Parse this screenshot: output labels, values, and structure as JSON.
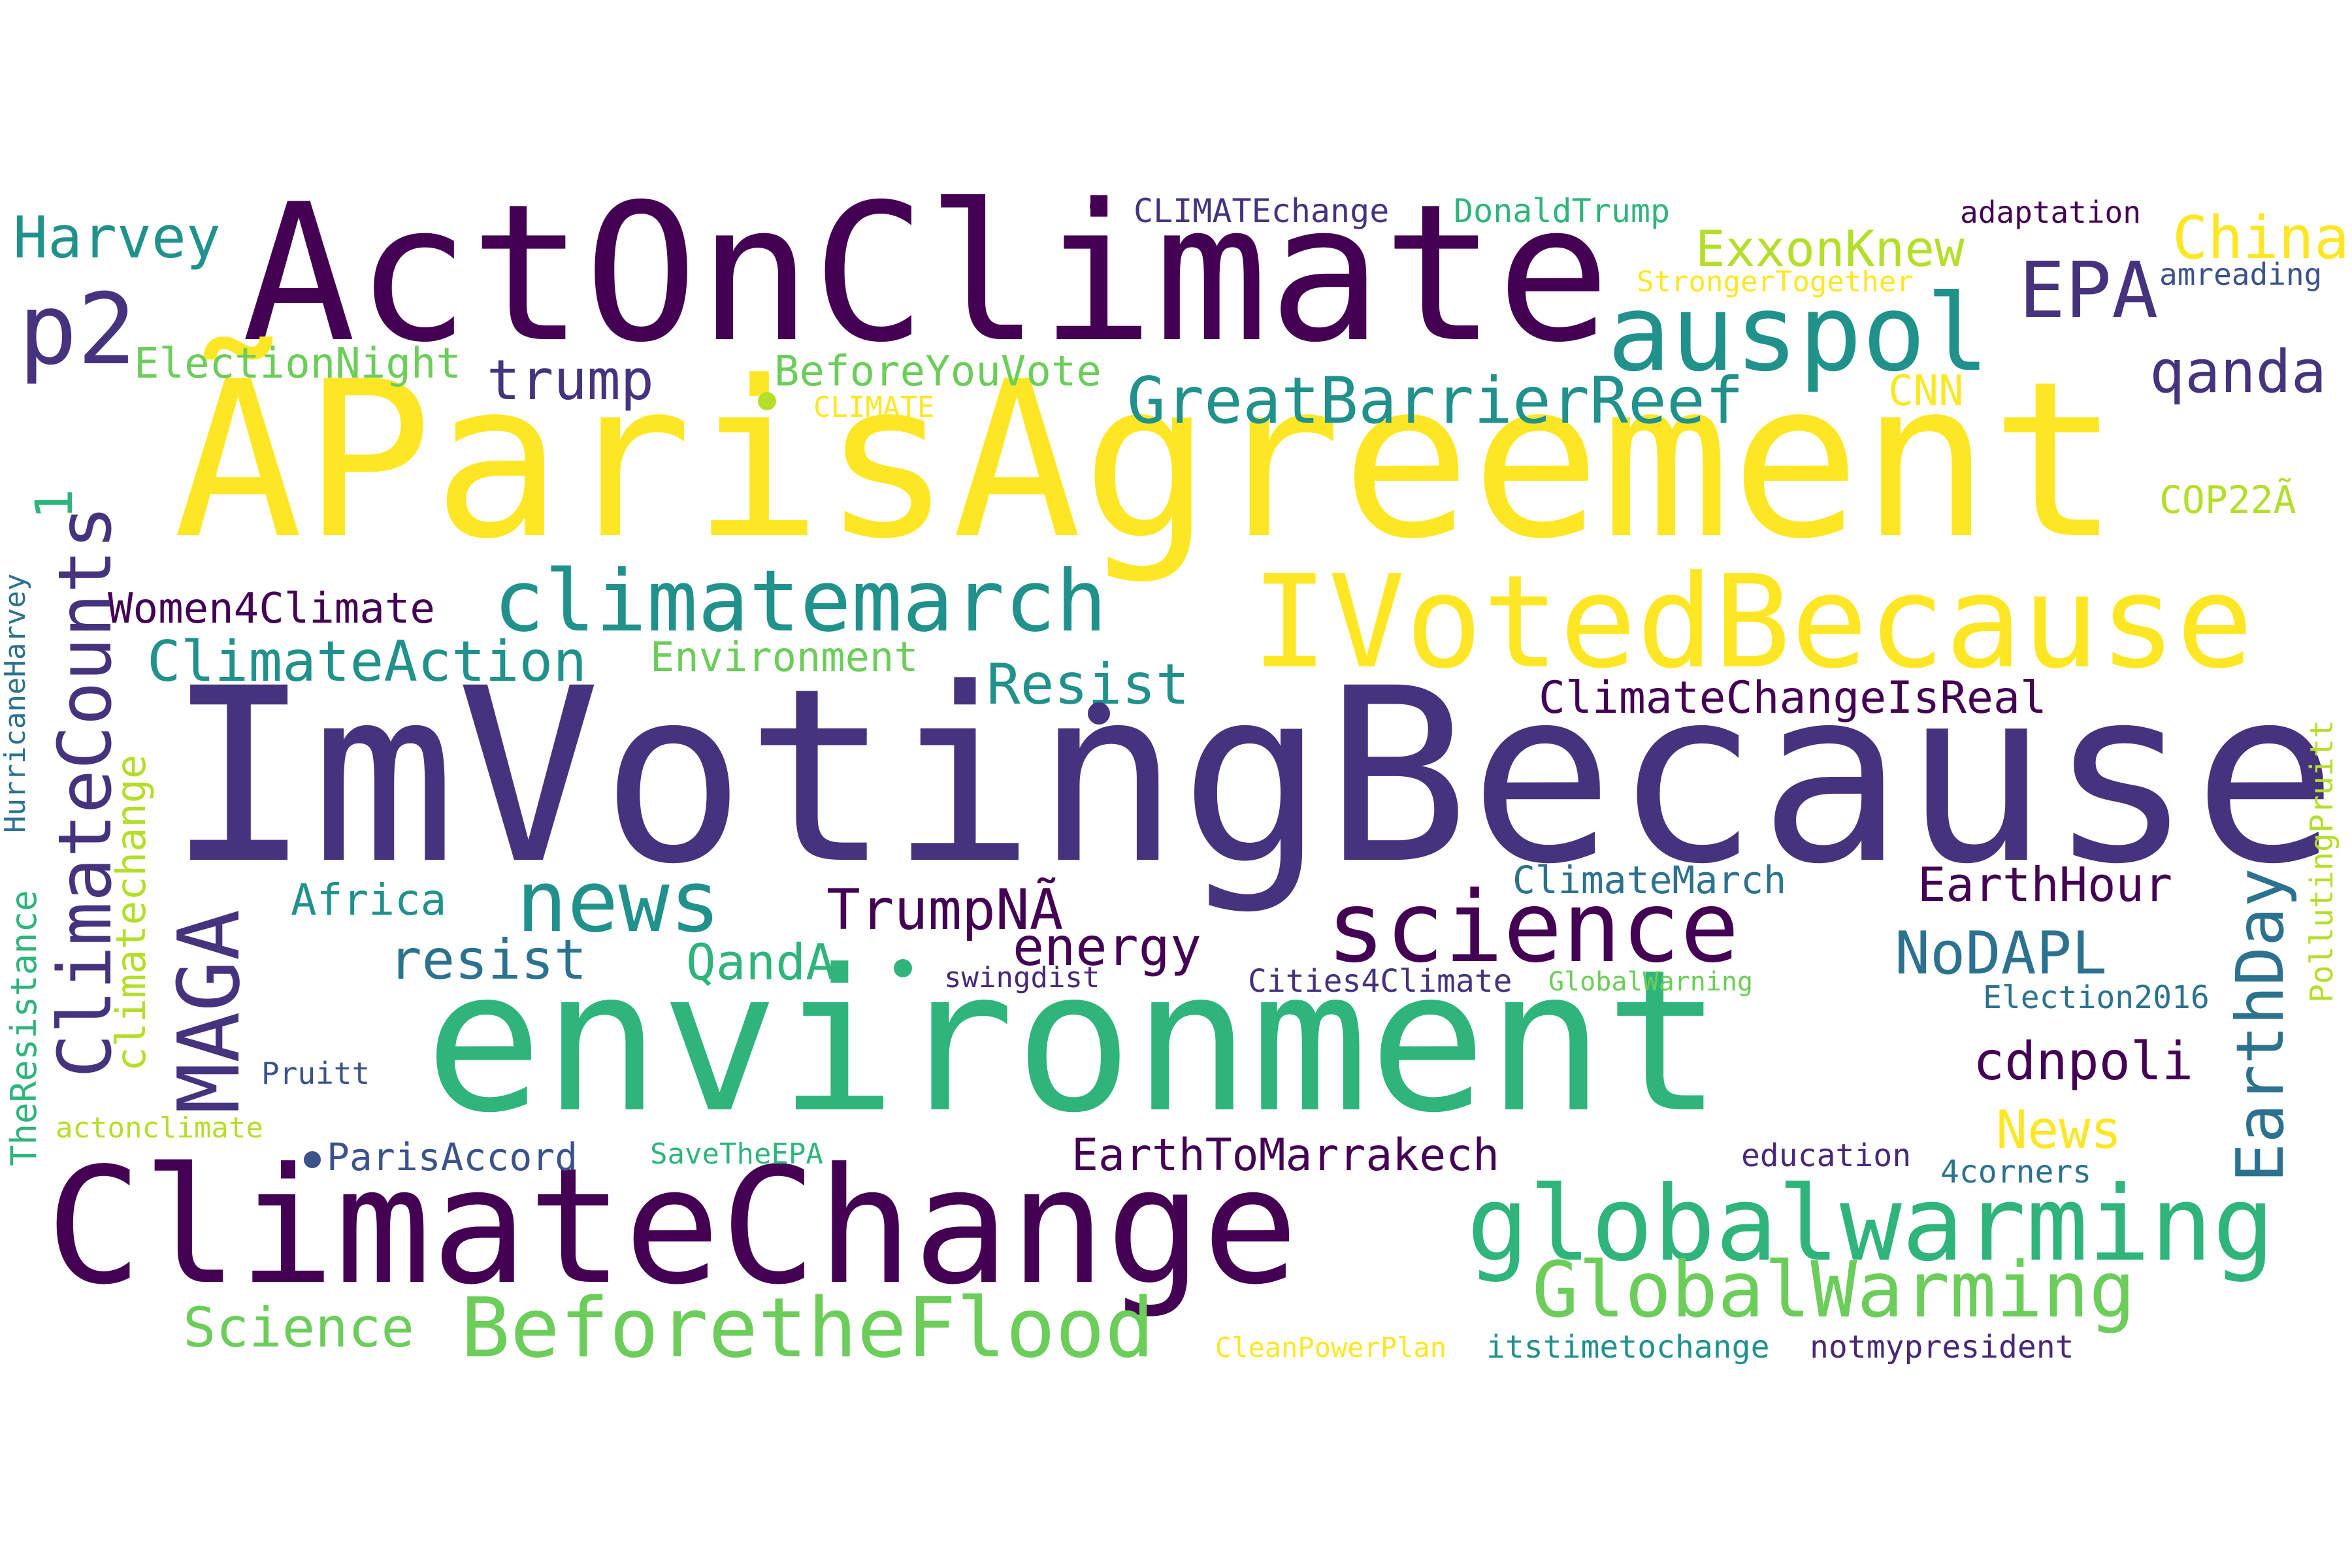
{
  "colors": {
    "dark_purple": "#440154",
    "indigo": "#3b528b",
    "slate": "#46337e",
    "teal": "#21918c",
    "steel": "#2c728e",
    "green": "#2fb47c",
    "lime": "#6ccd5a",
    "yellow_green": "#b5de2b",
    "yellow": "#fde725",
    "deep_violet": "#482878"
  },
  "words": [
    {
      "text": "ActOnClimate"
    },
    {
      "text": "ÃParisAgreement"
    },
    {
      "text": "ImVotingBecause"
    },
    {
      "text": "environment"
    },
    {
      "text": "ClimateChange"
    },
    {
      "text": "IVotedBecause"
    },
    {
      "text": "auspol"
    },
    {
      "text": "p2"
    },
    {
      "text": "EPA"
    },
    {
      "text": "globalwarming"
    },
    {
      "text": "GlobalWarming"
    },
    {
      "text": "BeforetheFlood"
    },
    {
      "text": "science"
    },
    {
      "text": "news"
    },
    {
      "text": "climatemarch"
    },
    {
      "text": "GreatBarrierReef"
    },
    {
      "text": "MAGA"
    },
    {
      "text": "ClimateCounts"
    },
    {
      "text": "EarthDay"
    },
    {
      "text": "Harvey"
    },
    {
      "text": "ElectionNight"
    },
    {
      "text": "trump"
    },
    {
      "text": "BeforeYouVote"
    },
    {
      "text": "ExxonKnew"
    },
    {
      "text": "China"
    },
    {
      "text": "qanda"
    },
    {
      "text": "CNN"
    },
    {
      "text": "CLIMATE"
    },
    {
      "text": "CLIMATEchange"
    },
    {
      "text": "DonaldTrump"
    },
    {
      "text": "StrongerTogether"
    },
    {
      "text": "adaptation"
    },
    {
      "text": "amreading"
    },
    {
      "text": "COP22Ã"
    },
    {
      "text": "1"
    },
    {
      "text": "Women4Climate"
    },
    {
      "text": "ClimateAction"
    },
    {
      "text": "Environment"
    },
    {
      "text": "Resist"
    },
    {
      "text": "ClimateChangeIsReal"
    },
    {
      "text": "climatechange"
    },
    {
      "text": "HurricaneHarvey"
    },
    {
      "text": "TheResistance"
    },
    {
      "text": "Africa"
    },
    {
      "text": "resist"
    },
    {
      "text": "TrumpNÃ"
    },
    {
      "text": "QandA"
    },
    {
      "text": "energy"
    },
    {
      "text": "swingdist"
    },
    {
      "text": "ClimateMarch"
    },
    {
      "text": "EarthHour"
    },
    {
      "text": "NoDAPL"
    },
    {
      "text": "Cities4Climate"
    },
    {
      "text": "GlobalWarning"
    },
    {
      "text": "Election2016"
    },
    {
      "text": "PollutingPruitt"
    },
    {
      "text": "cdnpoli"
    },
    {
      "text": "Pruitt"
    },
    {
      "text": "actonclimate"
    },
    {
      "text": "ParisAccord"
    },
    {
      "text": "SaveTheEPA"
    },
    {
      "text": "EarthToMarrakech"
    },
    {
      "text": "education"
    },
    {
      "text": "News"
    },
    {
      "text": "4corners"
    },
    {
      "text": "Science"
    },
    {
      "text": "CleanPowerPlan"
    },
    {
      "text": "itstimetochange"
    },
    {
      "text": "notmypresident"
    }
  ]
}
